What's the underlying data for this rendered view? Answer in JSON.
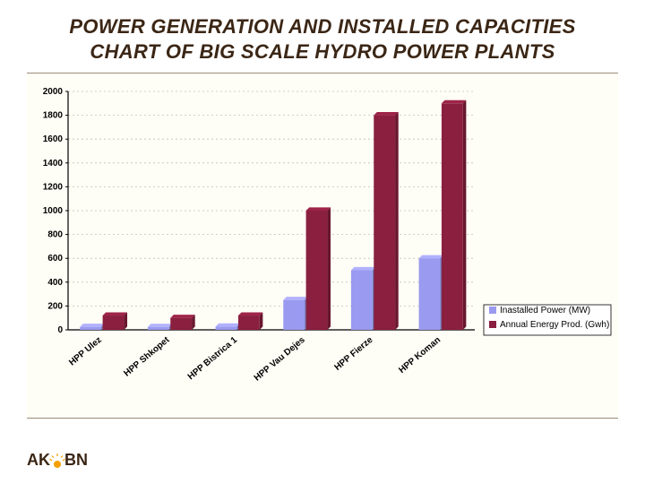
{
  "title_line1": "POWER GENERATION AND INSTALLED CAPACITIES",
  "title_line2": "CHART OF BIG SCALE HYDRO POWER PLANTS",
  "footer": {
    "left": "AK",
    "right": "BN"
  },
  "legend": {
    "items": [
      {
        "label": "Inastalled Power (MW)",
        "color": "#9a9af0"
      },
      {
        "label": "Annual Energy Prod. (Gwh)",
        "color": "#8a1f3f"
      }
    ],
    "border_color": "#000000",
    "bg": "#ffffff"
  },
  "chart": {
    "type": "bar",
    "background_color": "#fefdf6",
    "plot_bg": "#fefdf6",
    "grid_color": "#c0c0c0",
    "axis_color": "#000000",
    "ylim": [
      0,
      2000
    ],
    "ytick_step": 200,
    "yticks": [
      0,
      200,
      400,
      600,
      800,
      1000,
      1200,
      1400,
      1600,
      1800,
      2000
    ],
    "bar_group_width": 0.65,
    "bar_gap_inner": 0.02,
    "value_font_size": 10,
    "tick_font_size": 10,
    "cat_label_rotation": -40,
    "categories": [
      "HPP Ulez",
      "HPP Shkopet",
      "HPP Bistrica 1",
      "HPP Vau Dejes",
      "HPP Fierze",
      "HPP Koman"
    ],
    "series": [
      {
        "name": "Inastalled Power (MW)",
        "color": "#9a9af0",
        "values": [
          25,
          24,
          27,
          250,
          500,
          600
        ]
      },
      {
        "name": "Annual Energy Prod. (Gwh)",
        "color": "#8a1f3f",
        "values": [
          120,
          100,
          120,
          1000,
          1800,
          1900
        ]
      }
    ]
  }
}
